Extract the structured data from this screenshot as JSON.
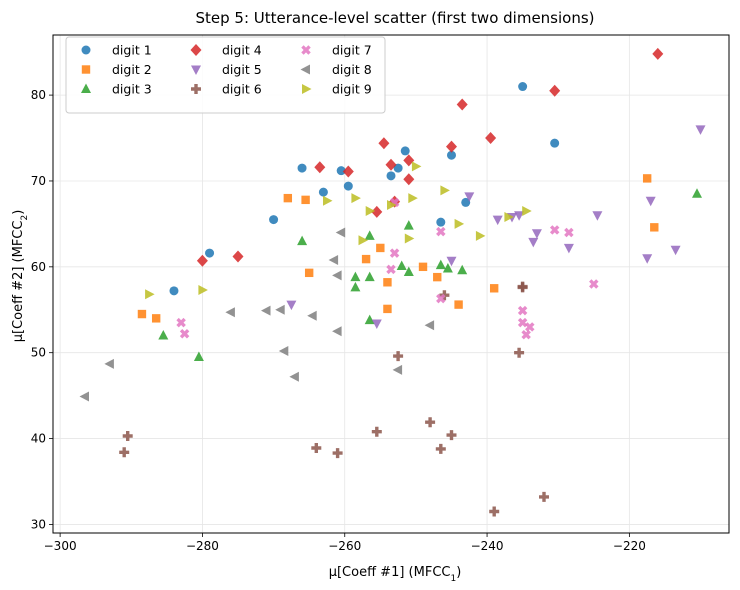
{
  "chart_data": {
    "type": "scatter",
    "title": "Step 5: Utterance-level scatter (first two dimensions)",
    "xlabel": {
      "prefix": "μ[Coeff #1]  (MFCC",
      "sub": "1",
      "suffix": ")"
    },
    "ylabel": {
      "prefix": "μ[Coeff #2]  (MFCC",
      "sub": "2",
      "suffix": ")"
    },
    "xlim": [
      -301,
      -206
    ],
    "ylim": [
      29,
      87
    ],
    "xticks": [
      -300,
      -280,
      -260,
      -240,
      -220
    ],
    "yticks": [
      30,
      40,
      50,
      60,
      70,
      80
    ],
    "xtick_labels": [
      "−300",
      "−280",
      "−260",
      "−240",
      "−220"
    ],
    "ytick_labels": [
      "30",
      "40",
      "50",
      "60",
      "70",
      "80"
    ],
    "grid": true,
    "legend_position": "top-left",
    "series": [
      {
        "name": "digit 1",
        "color": "#1f77b4",
        "marker": "circle",
        "points": [
          [
            -284,
            57.2
          ],
          [
            -279,
            61.6
          ],
          [
            -270,
            65.5
          ],
          [
            -266,
            71.5
          ],
          [
            -263,
            68.7
          ],
          [
            -260.5,
            71.2
          ],
          [
            -259.5,
            69.4
          ],
          [
            -253.5,
            70.6
          ],
          [
            -252.5,
            71.5
          ],
          [
            -251.5,
            73.5
          ],
          [
            -246.5,
            65.2
          ],
          [
            -245,
            73
          ],
          [
            -243,
            67.5
          ],
          [
            -235,
            81
          ],
          [
            -230.5,
            74.4
          ]
        ]
      },
      {
        "name": "digit 2",
        "color": "#ff7f0e",
        "marker": "square",
        "points": [
          [
            -288.5,
            54.5
          ],
          [
            -286.5,
            54
          ],
          [
            -268,
            68
          ],
          [
            -265.5,
            67.8
          ],
          [
            -265,
            59.3
          ],
          [
            -257,
            60.9
          ],
          [
            -255,
            62.2
          ],
          [
            -254,
            58.2
          ],
          [
            -254,
            55.1
          ],
          [
            -249,
            60
          ],
          [
            -247,
            58.8
          ],
          [
            -244,
            55.6
          ],
          [
            -239,
            57.5
          ],
          [
            -217.5,
            70.3
          ],
          [
            -216.5,
            64.6
          ]
        ]
      },
      {
        "name": "digit 3",
        "color": "#2ca02c",
        "marker": "triangle-up",
        "points": [
          [
            -285.5,
            52
          ],
          [
            -280.5,
            49.5
          ],
          [
            -266,
            63
          ],
          [
            -258.5,
            58.8
          ],
          [
            -258.5,
            57.6
          ],
          [
            -256.5,
            63.6
          ],
          [
            -256.5,
            58.8
          ],
          [
            -256.5,
            53.8
          ],
          [
            -252,
            60.1
          ],
          [
            -251,
            59.4
          ],
          [
            -251,
            64.8
          ],
          [
            -246.5,
            60.2
          ],
          [
            -245.5,
            59.8
          ],
          [
            -243.5,
            59.6
          ],
          [
            -210.5,
            68.5
          ]
        ]
      },
      {
        "name": "digit 4",
        "color": "#d62728",
        "marker": "diamond",
        "points": [
          [
            -280,
            60.7
          ],
          [
            -275,
            61.2
          ],
          [
            -263.5,
            71.6
          ],
          [
            -259.5,
            71.1
          ],
          [
            -255.5,
            66.4
          ],
          [
            -254.5,
            74.4
          ],
          [
            -253.5,
            71.9
          ],
          [
            -253,
            67.6
          ],
          [
            -251,
            72.4
          ],
          [
            -251,
            70.2
          ],
          [
            -245,
            74
          ],
          [
            -243.5,
            78.9
          ],
          [
            -239.5,
            75
          ],
          [
            -230.5,
            80.5
          ],
          [
            -216,
            84.8
          ]
        ]
      },
      {
        "name": "digit 5",
        "color": "#9467bd",
        "marker": "triangle-down",
        "points": [
          [
            -267.5,
            55.6
          ],
          [
            -255.5,
            53.4
          ],
          [
            -245,
            60.7
          ],
          [
            -242.5,
            68.2
          ],
          [
            -238.5,
            65.5
          ],
          [
            -236.5,
            65.8
          ],
          [
            -235.5,
            66
          ],
          [
            -233.5,
            62.9
          ],
          [
            -233,
            63.9
          ],
          [
            -228.5,
            62.2
          ],
          [
            -224.5,
            66
          ],
          [
            -217.5,
            61
          ],
          [
            -217,
            67.7
          ],
          [
            -213.5,
            62
          ],
          [
            -210,
            76
          ]
        ]
      },
      {
        "name": "digit 6",
        "color": "#8c564b",
        "marker": "plus",
        "points": [
          [
            -291,
            38.4
          ],
          [
            -290.5,
            40.3
          ],
          [
            -264,
            38.9
          ],
          [
            -261,
            38.3
          ],
          [
            -255.5,
            40.8
          ],
          [
            -252.5,
            49.6
          ],
          [
            -248,
            41.9
          ],
          [
            -246.5,
            38.8
          ],
          [
            -246,
            56.7
          ],
          [
            -245,
            40.4
          ],
          [
            -239,
            31.5
          ],
          [
            -235.5,
            50
          ],
          [
            -235,
            57.6
          ],
          [
            -232,
            33.2
          ],
          [
            -235,
            57.7
          ]
        ]
      },
      {
        "name": "digit 7",
        "color": "#e377c2",
        "marker": "x",
        "points": [
          [
            -283,
            53.5
          ],
          [
            -282.5,
            52.2
          ],
          [
            -253.5,
            59.7
          ],
          [
            -253,
            61.6
          ],
          [
            -253,
            67.5
          ],
          [
            -246.5,
            64.1
          ],
          [
            -246.5,
            56.3
          ],
          [
            -235,
            54.9
          ],
          [
            -235,
            53.5
          ],
          [
            -234.5,
            52.1
          ],
          [
            -234,
            53
          ],
          [
            -230.5,
            64.3
          ],
          [
            -228.5,
            64
          ],
          [
            -225,
            58
          ]
        ]
      },
      {
        "name": "digit 8",
        "color": "#7f7f7f",
        "marker": "triangle-left",
        "points": [
          [
            -296.5,
            44.9
          ],
          [
            -293,
            48.7
          ],
          [
            -276,
            54.7
          ],
          [
            -271,
            54.9
          ],
          [
            -269,
            55
          ],
          [
            -268.5,
            50.2
          ],
          [
            -267,
            47.2
          ],
          [
            -264.5,
            54.3
          ],
          [
            -261.5,
            60.8
          ],
          [
            -261,
            52.5
          ],
          [
            -260.5,
            64
          ],
          [
            -261,
            59
          ],
          [
            -252.5,
            48
          ],
          [
            -248,
            53.2
          ]
        ]
      },
      {
        "name": "digit 9",
        "color": "#bcbd22",
        "marker": "triangle-right",
        "points": [
          [
            -287.5,
            56.8
          ],
          [
            -280,
            57.3
          ],
          [
            -262.5,
            67.7
          ],
          [
            -258.5,
            68
          ],
          [
            -257.5,
            63.1
          ],
          [
            -256.5,
            66.5
          ],
          [
            -253.5,
            67.2
          ],
          [
            -251,
            63.3
          ],
          [
            -250.5,
            68
          ],
          [
            -250,
            71.7
          ],
          [
            -246,
            68.9
          ],
          [
            -244,
            65
          ],
          [
            -241,
            63.6
          ],
          [
            -237,
            65.8
          ],
          [
            -234.5,
            66.5
          ]
        ]
      }
    ]
  }
}
